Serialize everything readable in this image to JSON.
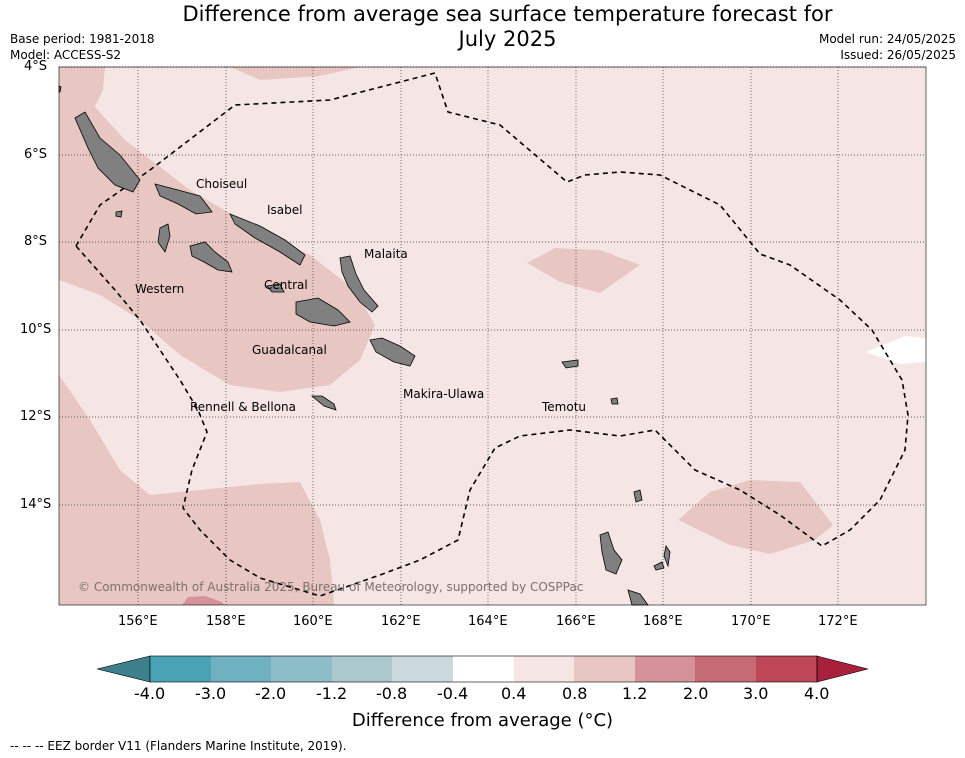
{
  "title": {
    "line1": "Difference from average sea surface temperature forecast for",
    "line2": "July 2025"
  },
  "meta": {
    "base_period": "Base period: 1981-2018",
    "model": "Model: ACCESS-S2",
    "model_run": "Model run: 24/05/2025",
    "issued": "Issued: 26/05/2025"
  },
  "axes": {
    "lat_labels": [
      "4°S",
      "6°S",
      "8°S",
      "10°S",
      "12°S",
      "14°S"
    ],
    "lon_labels": [
      "156°E",
      "158°E",
      "160°E",
      "162°E",
      "164°E",
      "166°E",
      "168°E",
      "170°E",
      "172°E"
    ]
  },
  "places": {
    "choiseul": "Choiseul",
    "isabel": "Isabel",
    "malaita": "Malaita",
    "western": "Western",
    "central": "Central",
    "guadalcanal": "Guadalcanal",
    "rennell_bellona": "Rennell & Bellona",
    "makira_ulawa": "Makira-Ulawa",
    "temotu": "Temotu"
  },
  "credit": "© Commonwealth of Australia 2025, Bureau of Meteorology, supported by COSPPac",
  "colorbar": {
    "title": "Difference from average (°C)",
    "ticks": [
      "-4.0",
      "-3.0",
      "-2.0",
      "-1.2",
      "-0.8",
      "-0.4",
      "0.4",
      "0.8",
      "1.2",
      "2.0",
      "3.0",
      "4.0"
    ],
    "colors": [
      "#3e7f8c",
      "#4aa3b5",
      "#6fb1c1",
      "#8dbdc7",
      "#abc9cc",
      "#cbd9dc",
      "#ffffff",
      "#f5e6e5",
      "#e8c7c3",
      "#d5929a",
      "#c66b76",
      "#bd4657",
      "#a8203c"
    ]
  },
  "footer": "--  --  -- EEZ border V11 (Flanders Marine Institute, 2019)."
}
